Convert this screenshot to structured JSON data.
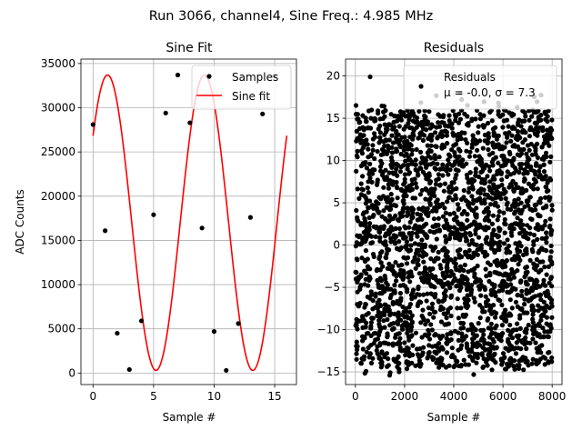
{
  "suptitle": "Run 3066, channel4, Sine Freq.: 4.985 MHz",
  "chart_data": [
    {
      "type": "line",
      "title": "Sine Fit",
      "xlabel": "Sample #",
      "ylabel": "ADC Counts",
      "xlim": [
        -1.0,
        16.8
      ],
      "ylim": [
        -1300,
        35500
      ],
      "xticks": [
        0,
        5,
        10,
        15
      ],
      "yticks": [
        0,
        5000,
        10000,
        15000,
        20000,
        25000,
        30000,
        35000
      ],
      "grid": true,
      "legend_position": "top-right",
      "series": [
        {
          "name": "Samples",
          "kind": "scatter",
          "color": "#000000",
          "x": [
            0,
            1,
            2,
            3,
            4,
            5,
            6,
            7,
            8,
            9,
            10,
            11,
            12,
            13,
            14,
            15
          ],
          "y": [
            28100,
            16100,
            4500,
            400,
            5900,
            17900,
            29400,
            33700,
            28300,
            16400,
            4700,
            300,
            5600,
            17600,
            29300,
            33600
          ]
        },
        {
          "name": "Sine fit",
          "kind": "line",
          "color": "#ff0000",
          "model": {
            "offset": 17000,
            "amplitude": 16700,
            "period_samples": 8.0,
            "phase_rad": 0.63,
            "x_start": 0,
            "x_end": 16
          }
        }
      ]
    },
    {
      "type": "scatter",
      "title": "Residuals",
      "xlabel": "Sample #",
      "ylabel": "",
      "xlim": [
        -400,
        8400
      ],
      "ylim": [
        -16.5,
        22
      ],
      "xticks": [
        0,
        2000,
        4000,
        6000,
        8000
      ],
      "yticks": [
        -15,
        -10,
        -5,
        0,
        5,
        10,
        15,
        20
      ],
      "grid": true,
      "legend_position": "top-right",
      "series": [
        {
          "name": "Residuals",
          "color": "#000000",
          "n_points": 8000,
          "x_range": [
            0,
            7999
          ],
          "mean": -0.0,
          "sigma": 7.3,
          "y_range": [
            -15.5,
            18
          ]
        }
      ],
      "legend_text": {
        "line1": "Residuals",
        "line2": "μ = -0.0, σ = 7.3"
      }
    }
  ]
}
